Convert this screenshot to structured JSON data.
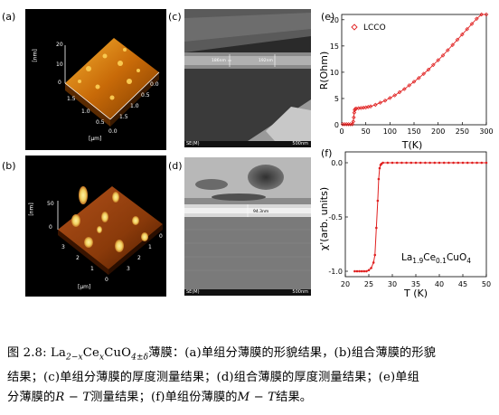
{
  "panels": {
    "a": {
      "label": "(a)",
      "axes": {
        "z_unit": "[nm]",
        "z_ticks": [
          "20",
          "10",
          "0"
        ],
        "y_ticks": [
          "0.0",
          "0.5",
          "1.0",
          "1.5"
        ],
        "x_ticks": [
          "1.5",
          "1.0",
          "0.5",
          "0.0"
        ],
        "x_unit": "[µm]",
        "colors": {
          "dark": "#5a2a00",
          "mid": "#c86a08",
          "light": "#f4b030"
        }
      }
    },
    "b": {
      "label": "(b)",
      "axes": {
        "z_unit": "[nm]",
        "z_ticks": [
          "50",
          "0"
        ],
        "y_ticks": [
          "0",
          "1",
          "2",
          "3"
        ],
        "x_ticks": [
          "3",
          "2",
          "1",
          "0"
        ],
        "x_unit": "[µm]",
        "colors": {
          "dark": "#3a1400",
          "mid": "#8a3a0a",
          "light": "#f0d060"
        }
      }
    },
    "c": {
      "label": "(c)",
      "sem_footer_left": "SE(M)",
      "sem_footer_right": "500nm",
      "measure_left": "186nm",
      "measure_right": "192nm"
    },
    "d": {
      "label": "(d)",
      "sem_footer_left": "SE(M)",
      "sem_footer_right": "500nm",
      "measure": "94.3nm"
    },
    "e": {
      "label": "(e)"
    },
    "f": {
      "label": "(f)"
    }
  },
  "chart_data": [
    {
      "panel": "e",
      "type": "scatter",
      "xlabel": "T(K)",
      "ylabel": "R(Ohm)",
      "xlim": [
        0,
        300
      ],
      "ylim": [
        0,
        21
      ],
      "xticks": [
        0,
        50,
        100,
        150,
        200,
        250,
        300
      ],
      "yticks": [
        0,
        5,
        10,
        15,
        20
      ],
      "legend": "top-left",
      "series": [
        {
          "name": "LCCO",
          "color": "#e02020",
          "x": [
            2,
            6,
            10,
            14,
            18,
            22,
            24,
            25,
            26,
            27,
            28,
            30,
            35,
            40,
            45,
            50,
            55,
            60,
            70,
            80,
            90,
            100,
            110,
            120,
            130,
            140,
            150,
            160,
            170,
            180,
            190,
            200,
            210,
            220,
            230,
            240,
            250,
            260,
            270,
            280,
            290,
            300
          ],
          "y": [
            0.1,
            0.1,
            0.1,
            0.1,
            0.1,
            0.1,
            0.6,
            1.4,
            2.3,
            2.8,
            3.0,
            3.1,
            3.15,
            3.2,
            3.25,
            3.3,
            3.4,
            3.5,
            3.8,
            4.2,
            4.6,
            5.1,
            5.6,
            6.2,
            6.8,
            7.5,
            8.2,
            8.9,
            9.7,
            10.5,
            11.4,
            12.3,
            13.2,
            14.2,
            15.2,
            16.2,
            17.2,
            18.2,
            19.2,
            20.2,
            21.2,
            22.2
          ]
        }
      ]
    },
    {
      "panel": "f",
      "type": "line",
      "xlabel": "T (K)",
      "ylabel": "χ'(arb. units)",
      "xlim": [
        20,
        50
      ],
      "ylim": [
        -1.05,
        0.1
      ],
      "xticks": [
        20,
        25,
        30,
        35,
        40,
        45,
        50
      ],
      "yticks": [
        0.0,
        -0.5,
        -1.0
      ],
      "ytick_labels": [
        "0.0",
        "-0.5",
        "-1.0"
      ],
      "annotation": "La1.9Ce0.1CuO4",
      "series": [
        {
          "color": "#e02020",
          "x": [
            22,
            22.5,
            23,
            23.5,
            24,
            24.5,
            25,
            25.5,
            26,
            26.3,
            26.6,
            26.9,
            27.1,
            27.3,
            27.5,
            27.7,
            28,
            29,
            30,
            31,
            32,
            33,
            34,
            35,
            36,
            37,
            38,
            39,
            40,
            41,
            42,
            43,
            44,
            45,
            46,
            47,
            48,
            49,
            50
          ],
          "y": [
            -1.0,
            -1.0,
            -1.0,
            -1.0,
            -1.0,
            -1.0,
            -0.99,
            -0.97,
            -0.92,
            -0.85,
            -0.6,
            -0.35,
            -0.15,
            -0.05,
            -0.02,
            -0.01,
            0.0,
            0.0,
            0.0,
            0.0,
            0.0,
            0.0,
            0.0,
            0.0,
            0.0,
            0.0,
            0.0,
            0.0,
            0.0,
            0.0,
            0.0,
            0.0,
            0.0,
            0.0,
            0.0,
            0.0,
            0.0,
            0.0,
            0.0
          ]
        }
      ]
    }
  ],
  "caption": {
    "fig": "图 2.8:",
    "formula": {
      "la": "La",
      "la_sub": "2−x",
      "ce": "Ce",
      "ce_sub": "x",
      "cu": "CuO",
      "o_sub": "4±δ"
    },
    "line1_rest": "薄膜：(a)单组分薄膜的形貌结果，(b)组合薄膜的形貌",
    "line2": "结果；(c)单组分薄膜的厚度测量结果；(d)组合薄膜的厚度测量结果；(e)单组",
    "line3_a": "分薄膜的",
    "line3_math1": "R − T",
    "line3_b": "测量结果；(f)单组份薄膜的",
    "line3_math2": "M − T",
    "line3_c": "结果。"
  }
}
